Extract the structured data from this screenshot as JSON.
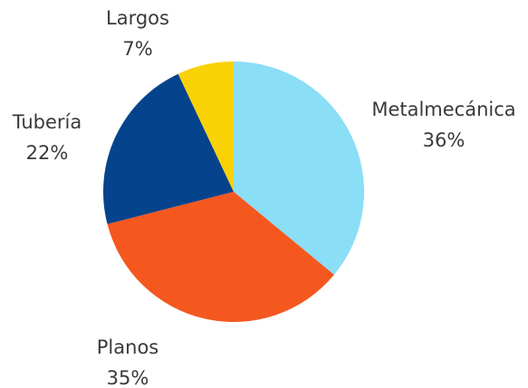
{
  "chart_data": {
    "type": "pie",
    "title": "",
    "start_angle_deg": 0,
    "direction": "clockwise",
    "slices": [
      {
        "name": "Metalmecánica",
        "value": 36,
        "value_label": "36%",
        "color": "#8ADEF6"
      },
      {
        "name": "Planos",
        "value": 35,
        "value_label": "35%",
        "color": "#F4581F"
      },
      {
        "name": "Tubería",
        "value": 22,
        "value_label": "22%",
        "color": "#05438C"
      },
      {
        "name": "Largos",
        "value": 7,
        "value_label": "7%",
        "color": "#F9D205"
      }
    ]
  }
}
